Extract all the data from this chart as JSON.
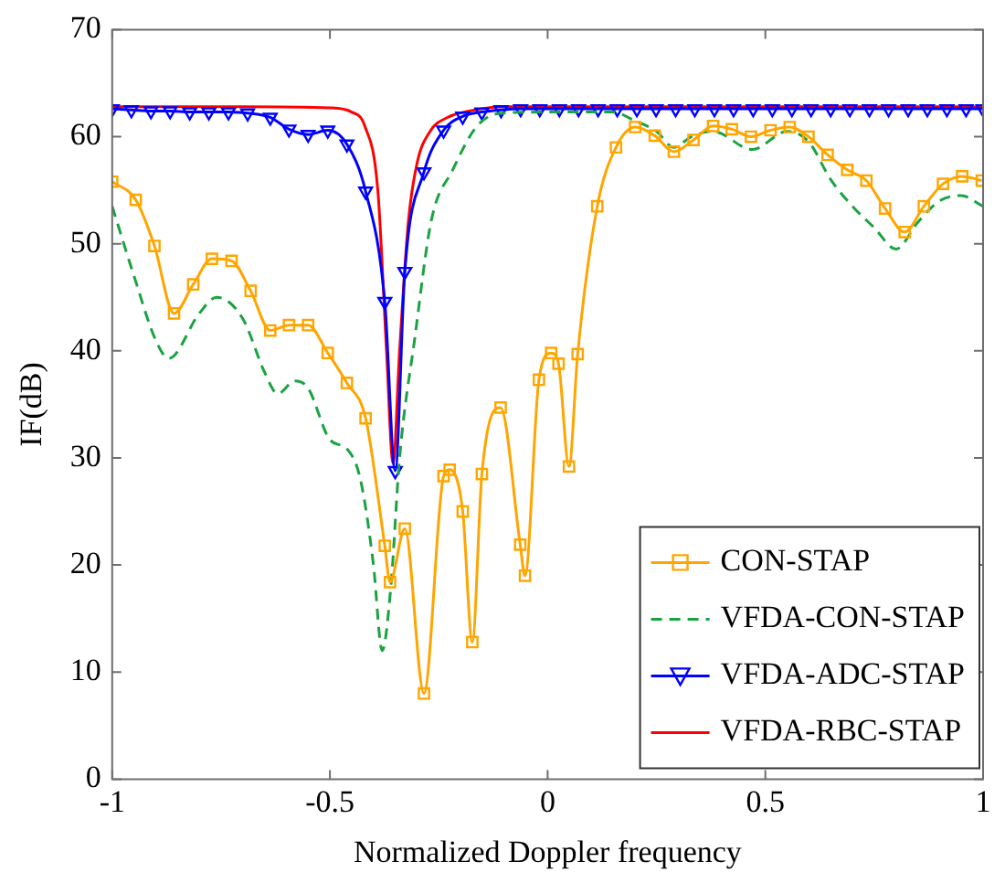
{
  "chart_data": {
    "type": "line",
    "xlabel": "Normalized Doppler frequency",
    "ylabel": "IF(dB)",
    "xlim": [
      -1,
      1
    ],
    "xticks": [
      -1,
      -0.5,
      0,
      0.5,
      1
    ],
    "ylim": [
      0,
      70
    ],
    "yticks": [
      0,
      10,
      20,
      30,
      40,
      50,
      60,
      70
    ],
    "grid": false,
    "legend": "bottom right",
    "series": [
      {
        "name": "CON-STAP",
        "color": "#ffa500",
        "marker": "square",
        "line_style": "solid",
        "x": [
          -1,
          -0.946,
          -0.903,
          -0.858,
          -0.814,
          -0.771,
          -0.726,
          -0.682,
          -0.637,
          -0.594,
          -0.55,
          -0.505,
          -0.461,
          -0.418,
          -0.374,
          -0.362,
          -0.328,
          -0.284,
          -0.239,
          -0.225,
          -0.195,
          -0.173,
          -0.151,
          -0.108,
          -0.063,
          -0.052,
          -0.02,
          0.008,
          0.025,
          0.049,
          0.069,
          0.114,
          0.157,
          0.201,
          0.246,
          0.29,
          0.335,
          0.38,
          0.423,
          0.467,
          0.512,
          0.556,
          0.599,
          0.643,
          0.688,
          0.732,
          0.775,
          0.82,
          0.864,
          0.908,
          0.952,
          0.997
        ],
        "values": [
          55.8,
          54.1,
          49.8,
          43.5,
          46.2,
          48.6,
          48.4,
          45.6,
          41.9,
          42.4,
          42.4,
          39.8,
          37,
          33.7,
          21.8,
          18.4,
          23.4,
          8,
          28.3,
          28.9,
          25,
          12.8,
          28.5,
          34.7,
          21.9,
          19,
          37.3,
          39.8,
          38.8,
          29.2,
          39.7,
          53.5,
          59,
          60.9,
          60.1,
          58.6,
          59.7,
          61,
          60.7,
          60,
          60.6,
          60.9,
          60,
          58.3,
          56.9,
          55.9,
          53.3,
          51.1,
          53.5,
          55.6,
          56.3,
          55.9
        ]
      },
      {
        "name": "VFDA-CON-STAP",
        "color": "#1aa340",
        "marker": "none",
        "line_style": "dashed",
        "x": [
          -1,
          -0.95,
          -0.9,
          -0.87,
          -0.8,
          -0.76,
          -0.7,
          -0.65,
          -0.62,
          -0.58,
          -0.55,
          -0.5,
          -0.46,
          -0.43,
          -0.4,
          -0.38,
          -0.36,
          -0.34,
          -0.305,
          -0.267,
          -0.218,
          -0.162,
          -0.105,
          0,
          0.15,
          0.2,
          0.25,
          0.29,
          0.33,
          0.38,
          0.47,
          0.55,
          0.6,
          0.65,
          0.7,
          0.75,
          0.8,
          0.85,
          0.9,
          0.95,
          1
        ],
        "values": [
          53.5,
          47,
          41,
          39.3,
          43.5,
          45,
          43,
          38,
          36,
          37.2,
          36.5,
          31.7,
          30.8,
          28,
          20,
          12,
          18,
          30,
          41.2,
          52.2,
          56.9,
          61,
          62.2,
          62.3,
          62.3,
          61.5,
          60.5,
          59,
          60,
          60.5,
          58.8,
          60.5,
          59.5,
          56,
          53.5,
          51.5,
          49.5,
          52,
          54,
          54.5,
          53.5
        ]
      },
      {
        "name": "VFDA-ADC-STAP",
        "color": "#0000ff",
        "marker": "triangle",
        "line_style": "solid",
        "x": [
          -1,
          -0.956,
          -0.911,
          -0.867,
          -0.822,
          -0.778,
          -0.733,
          -0.689,
          -0.637,
          -0.594,
          -0.55,
          -0.505,
          -0.461,
          -0.418,
          -0.374,
          -0.35,
          -0.328,
          -0.284,
          -0.239,
          -0.195,
          -0.151,
          -0.107,
          -0.062,
          -0.018,
          0.027,
          0.071,
          0.116,
          0.16,
          0.205,
          0.249,
          0.294,
          0.338,
          0.383,
          0.427,
          0.472,
          0.516,
          0.561,
          0.605,
          0.65,
          0.694,
          0.739,
          0.783,
          0.828,
          0.872,
          0.917,
          0.961,
          1
        ],
        "values": [
          62.6,
          62.5,
          62.4,
          62.4,
          62.3,
          62.3,
          62.3,
          62.2,
          61.8,
          60.7,
          60.2,
          60.6,
          59.3,
          54.9,
          44.6,
          28.8,
          47.4,
          56.7,
          60.6,
          61.9,
          62.3,
          62.5,
          62.6,
          62.6,
          62.6,
          62.6,
          62.6,
          62.6,
          62.6,
          62.6,
          62.6,
          62.6,
          62.6,
          62.6,
          62.6,
          62.6,
          62.6,
          62.6,
          62.6,
          62.6,
          62.6,
          62.6,
          62.6,
          62.6,
          62.6,
          62.6,
          62.6
        ]
      },
      {
        "name": "VFDA-RBC-STAP",
        "color": "#ff0000",
        "marker": "none",
        "line_style": "solid",
        "x": [
          -1,
          -0.7,
          -0.5,
          -0.45,
          -0.42,
          -0.39,
          -0.37,
          -0.355,
          -0.34,
          -0.32,
          -0.3,
          -0.27,
          -0.23,
          -0.18,
          -0.1,
          0.5,
          1
        ],
        "values": [
          62.8,
          62.8,
          62.7,
          62.3,
          61,
          55,
          40,
          29.5,
          40,
          52,
          57.5,
          60.5,
          61.8,
          62.4,
          62.8,
          62.8,
          62.8
        ]
      }
    ]
  }
}
